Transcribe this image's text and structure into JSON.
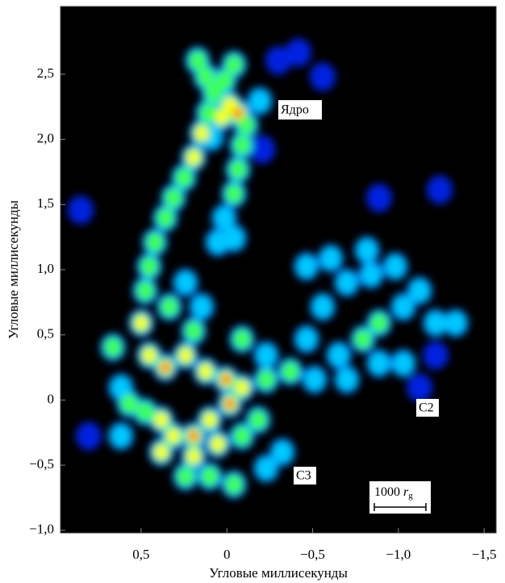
{
  "chart_data": {
    "type": "image",
    "x_label": "Угловые миллисекунды",
    "y_label": "Угловые миллисекунды",
    "xlim": [
      0.97,
      -1.57
    ],
    "ylim": [
      -1.02,
      3.02
    ],
    "xticks": [
      {
        "value": 0.5,
        "label": "0,5"
      },
      0,
      {
        "value": -0.5,
        "label": "−0,5"
      },
      {
        "value": -1.0,
        "label": "−1,0"
      },
      {
        "value": -1.5,
        "label": "−1,5"
      }
    ],
    "yticks": [
      {
        "value": -1.0,
        "label": "−1,0"
      },
      {
        "value": -0.5,
        "label": "−0,5"
      },
      0,
      {
        "value": 0.5,
        "label": "0,5"
      },
      {
        "value": 1.0,
        "label": "1,0"
      },
      {
        "value": 1.5,
        "label": "1,5"
      },
      {
        "value": 2.0,
        "label": "2,0"
      },
      {
        "value": 2.5,
        "label": "2,5"
      }
    ],
    "annotations": [
      "Ядро",
      "C2",
      "C3"
    ],
    "scale_bar": {
      "number": "1000",
      "symbol": "r",
      "subscript": "g"
    }
  }
}
